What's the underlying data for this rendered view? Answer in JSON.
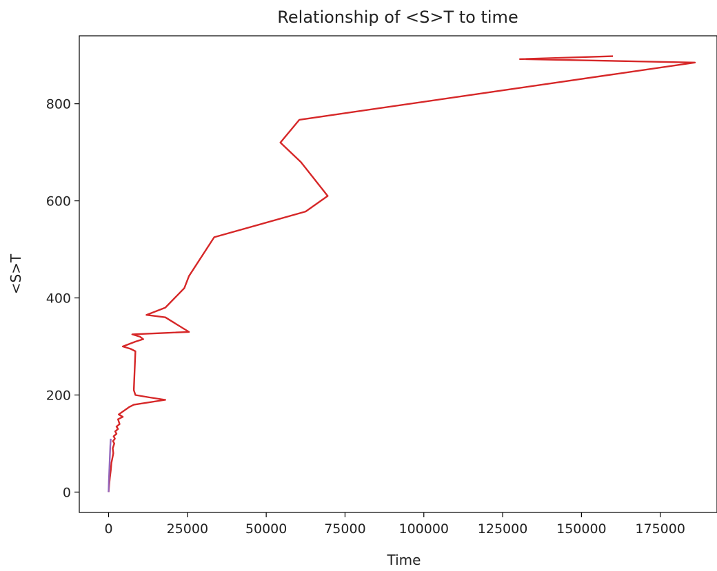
{
  "chart_data": {
    "type": "line",
    "title": "Relationship of <S>T to time",
    "xlabel": "Time",
    "ylabel": "<S>T",
    "xlim": [
      -9300,
      193000
    ],
    "ylim": [
      -42,
      940
    ],
    "x_ticks": [
      0,
      25000,
      50000,
      75000,
      100000,
      125000,
      150000,
      175000
    ],
    "y_ticks": [
      0,
      200,
      400,
      600,
      800
    ],
    "grid": false,
    "legend": "none",
    "series": [
      {
        "color": "#d62728",
        "x": [
          0,
          200,
          400,
          700,
          900,
          1200,
          1500,
          1300,
          1800,
          1400,
          2000,
          1600,
          2500,
          2100,
          3000,
          2500,
          3500,
          3000,
          4500,
          3200,
          6500,
          8000,
          18000,
          13000,
          8500,
          8000,
          8500,
          7000,
          4500,
          8500,
          11000,
          10000,
          7500,
          25500,
          18000,
          12000,
          18000,
          24000,
          25500,
          33500,
          62500,
          69500,
          61000,
          54500,
          60500,
          186000,
          130500,
          160000
        ],
        "y": [
          0,
          15,
          30,
          45,
          60,
          70,
          80,
          90,
          100,
          105,
          110,
          115,
          120,
          125,
          130,
          135,
          140,
          150,
          155,
          160,
          175,
          180,
          190,
          195,
          200,
          210,
          290,
          295,
          300,
          310,
          315,
          320,
          325,
          330,
          360,
          365,
          380,
          420,
          445,
          525,
          578,
          610,
          680,
          720,
          767,
          885,
          892,
          898
        ]
      },
      {
        "color": "#9467bd",
        "x": [
          0,
          100,
          250,
          400,
          550,
          700
        ],
        "y": [
          0,
          25,
          50,
          75,
          95,
          110
        ]
      }
    ]
  }
}
